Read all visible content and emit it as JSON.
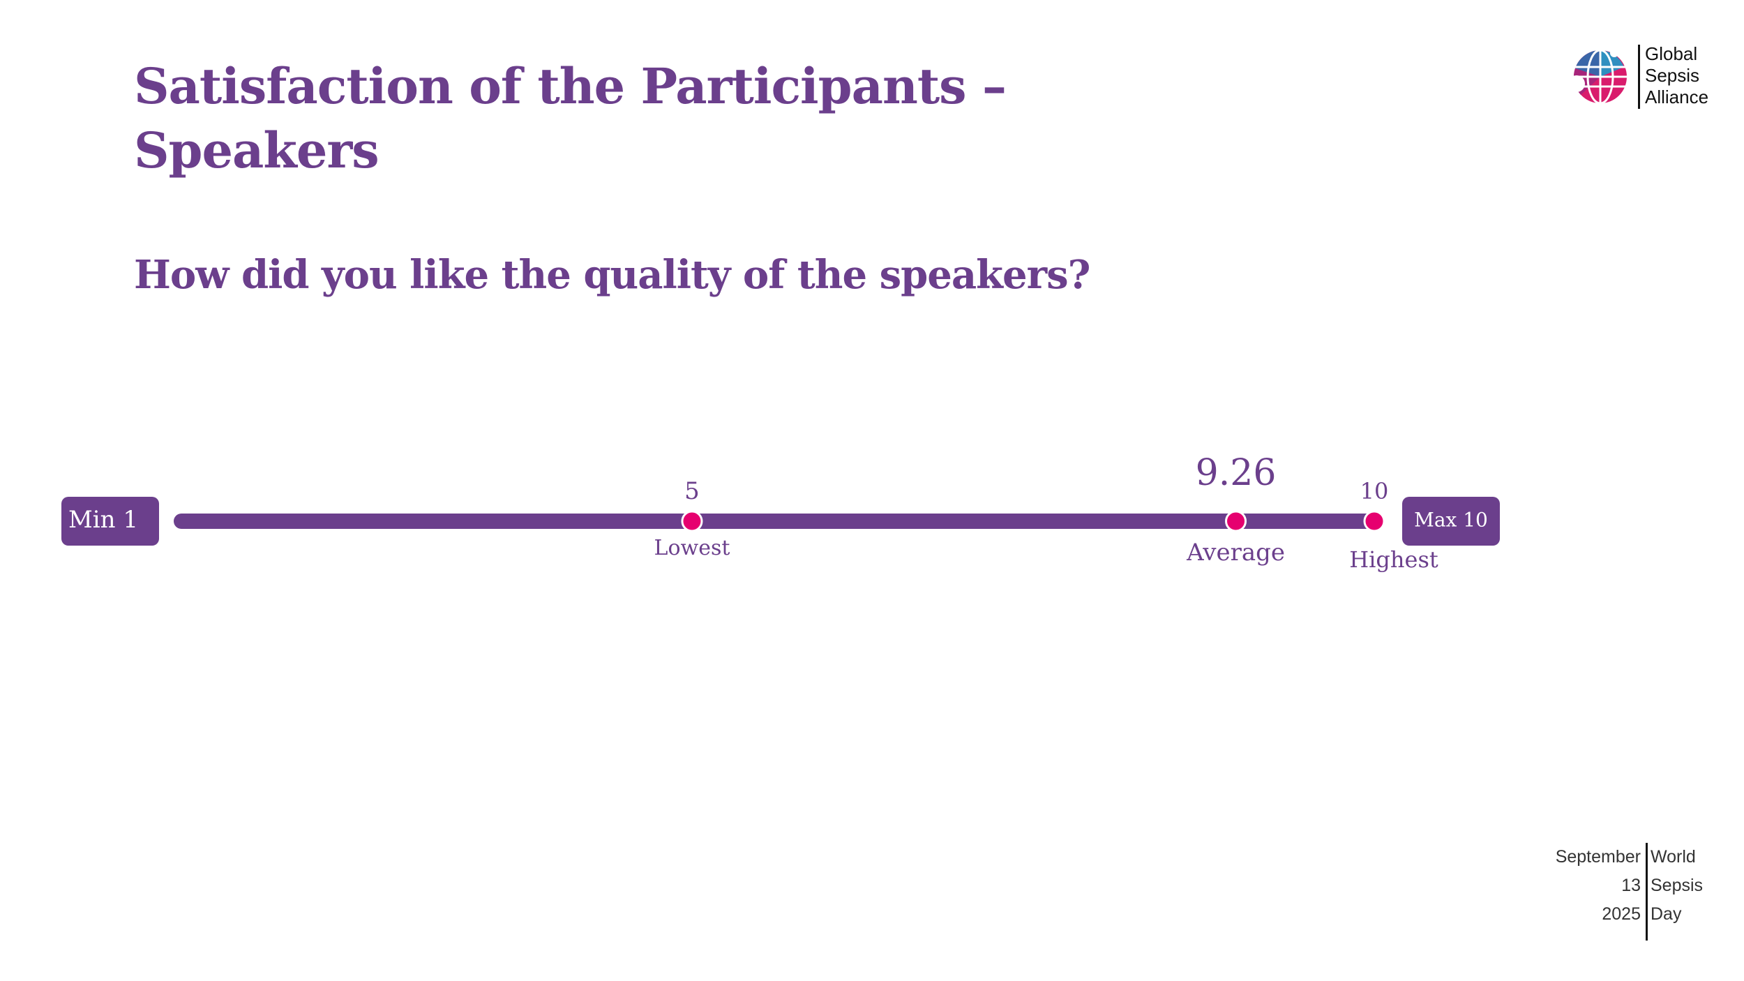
{
  "header": {
    "title": "Satisfaction of the Participants – Speakers",
    "question": "How did you like the quality of the speakers?"
  },
  "logo": {
    "icon": "globe-icon",
    "lines": [
      "Global",
      "Sepsis",
      "Alliance"
    ]
  },
  "chart_data": {
    "type": "scale",
    "min": 1,
    "max": 10,
    "min_label": "Min 1",
    "max_label": "Max 10",
    "markers": [
      {
        "name": "Lowest",
        "value": 5,
        "value_label": "5"
      },
      {
        "name": "Average",
        "value": 9.26,
        "value_label": "9.26"
      },
      {
        "name": "Highest",
        "value": 10,
        "value_label": "10"
      }
    ]
  },
  "footer": {
    "left": [
      "September",
      "13",
      "2025"
    ],
    "right": [
      "World",
      "Sepsis",
      "Day"
    ]
  },
  "colors": {
    "primary": "#6b3f8c",
    "accent": "#e6006f",
    "background": "#ffffff"
  }
}
